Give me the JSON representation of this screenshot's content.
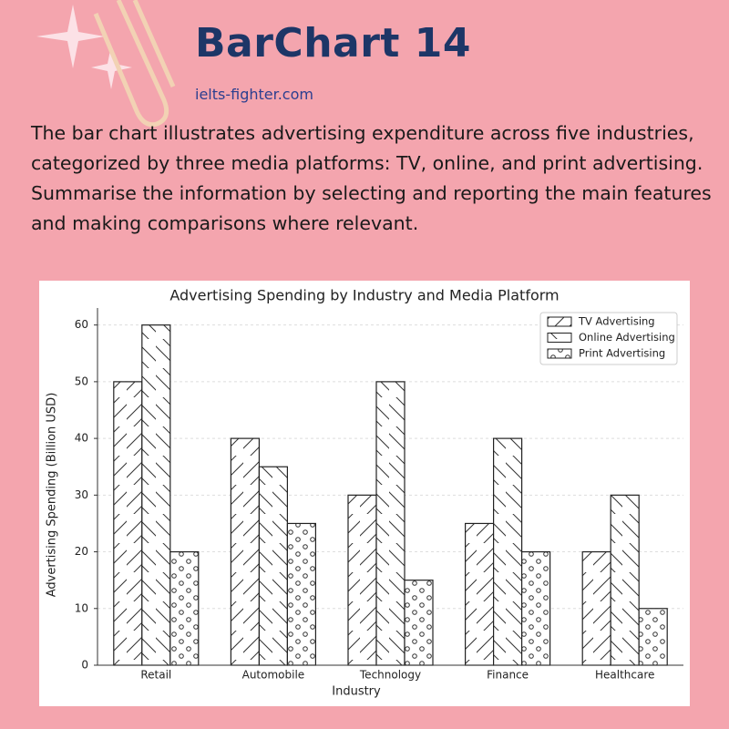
{
  "header": {
    "title": "BarChart 14",
    "website": "ielts-fighter.com",
    "prompt": [
      "The bar chart illustrates advertising expenditure across five industries, categorized by three media platforms: TV, online, and print advertising.",
      "Summarise the information by selecting and reporting the main features and making comparisons where relevant."
    ]
  },
  "chart_data": {
    "type": "bar",
    "title": "Advertising Spending by Industry and Media Platform",
    "x_label": "Industry",
    "y_label": "Advertising Spending (Billion USD)",
    "categories": [
      "Retail",
      "Automobile",
      "Technology",
      "Finance",
      "Healthcare"
    ],
    "series": [
      {
        "name": "TV Advertising",
        "color": "#ffffff",
        "hatch": "/",
        "values": [
          50,
          40,
          30,
          25,
          20
        ]
      },
      {
        "name": "Online Advertising",
        "color": "#ffffff",
        "hatch": "\\",
        "values": [
          60,
          35,
          50,
          40,
          30
        ]
      },
      {
        "name": "Print Advertising",
        "color": "#ffffff",
        "hatch": "o",
        "values": [
          20,
          25,
          15,
          20,
          10
        ]
      }
    ],
    "ylim": [
      0,
      63
    ],
    "yticks": [
      0,
      10,
      20,
      30,
      40,
      50,
      60
    ],
    "grid": true,
    "legend": "upper right"
  }
}
